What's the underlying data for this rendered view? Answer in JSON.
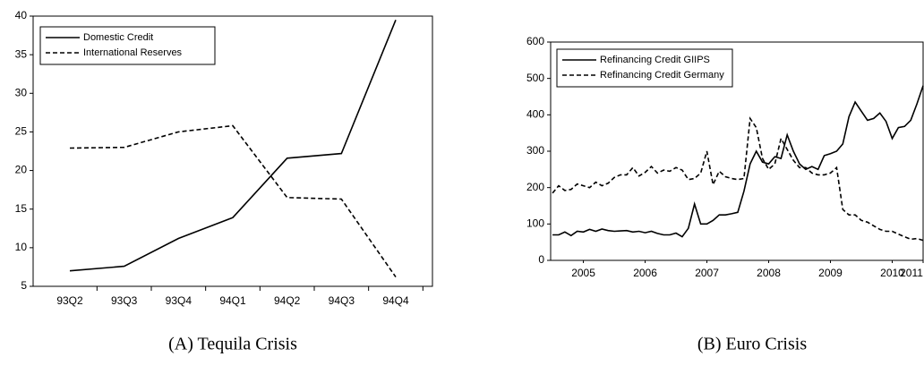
{
  "chart_data": [
    {
      "type": "line",
      "caption": "(A) Tequila Crisis",
      "categories": [
        "93Q2",
        "93Q3",
        "93Q4",
        "94Q1",
        "94Q2",
        "94Q3",
        "94Q4"
      ],
      "series": [
        {
          "name": "Domestic Credit",
          "color": "#000000",
          "line_style": "solid",
          "values": [
            7.0,
            7.6,
            11.2,
            13.9,
            21.6,
            22.2,
            39.5
          ]
        },
        {
          "name": "International Reserves",
          "color": "#000000",
          "line_style": "dashed",
          "values": [
            22.9,
            23.0,
            25.0,
            25.8,
            16.5,
            16.3,
            6.2
          ]
        }
      ],
      "ylim": [
        5,
        40
      ],
      "yticks": [
        5,
        10,
        15,
        20,
        25,
        30,
        35,
        40
      ],
      "legend": "upper-left",
      "grid": false
    },
    {
      "type": "line",
      "caption": "(B) Euro Crisis",
      "x": [
        2005.0,
        2005.1,
        2005.2,
        2005.3,
        2005.4,
        2005.5,
        2005.6,
        2005.7,
        2005.8,
        2005.9,
        2006.0,
        2006.1,
        2006.2,
        2006.3,
        2006.4,
        2006.5,
        2006.6,
        2006.7,
        2006.8,
        2006.9,
        2007.0,
        2007.1,
        2007.2,
        2007.3,
        2007.4,
        2007.5,
        2007.6,
        2007.7,
        2007.8,
        2007.9,
        2008.0,
        2008.1,
        2008.2,
        2008.3,
        2008.4,
        2008.5,
        2008.6,
        2008.7,
        2008.8,
        2008.9,
        2009.0,
        2009.1,
        2009.2,
        2009.3,
        2009.4,
        2009.5,
        2009.6,
        2009.7,
        2009.8,
        2009.9,
        2010.0,
        2010.1,
        2010.2,
        2010.3,
        2010.4,
        2010.5,
        2010.6,
        2010.7,
        2010.8,
        2010.9,
        2011.0
      ],
      "series": [
        {
          "name": "Refinancing Credit GIIPS",
          "color": "#000000",
          "line_style": "solid",
          "values": [
            70,
            70,
            78,
            68,
            80,
            78,
            85,
            80,
            86,
            82,
            80,
            81,
            82,
            78,
            80,
            76,
            80,
            74,
            70,
            70,
            75,
            65,
            88,
            155,
            100,
            100,
            110,
            125,
            125,
            128,
            132,
            190,
            265,
            300,
            270,
            265,
            285,
            280,
            345,
            300,
            265,
            250,
            258,
            250,
            288,
            293,
            300,
            320,
            395,
            435,
            410,
            385,
            390,
            405,
            382,
            335,
            365,
            368,
            385,
            430,
            480
          ]
        },
        {
          "name": "Refinancing Credit Germany",
          "color": "#000000",
          "line_style": "dashed",
          "values": [
            185,
            205,
            192,
            195,
            210,
            205,
            200,
            215,
            205,
            212,
            228,
            235,
            235,
            255,
            232,
            242,
            258,
            240,
            248,
            245,
            255,
            248,
            222,
            225,
            240,
            300,
            208,
            245,
            230,
            225,
            222,
            225,
            390,
            365,
            280,
            250,
            265,
            335,
            305,
            275,
            255,
            255,
            240,
            235,
            235,
            240,
            255,
            140,
            125,
            125,
            110,
            105,
            95,
            85,
            80,
            80,
            72,
            65,
            58,
            60,
            55
          ]
        }
      ],
      "xlim": [
        2004.97,
        2011.0
      ],
      "xticks": [
        {
          "value": 2005.5,
          "label": "2005"
        },
        {
          "value": 2006.5,
          "label": "2006"
        },
        {
          "value": 2007.5,
          "label": "2007"
        },
        {
          "value": 2008.5,
          "label": "2008"
        },
        {
          "value": 2009.5,
          "label": "2009"
        },
        {
          "value": 2010.5,
          "label": "2010"
        },
        {
          "value": 2011.5,
          "label": "2011"
        }
      ],
      "ylim": [
        0,
        600
      ],
      "yticks": [
        0,
        100,
        200,
        300,
        400,
        500,
        600
      ],
      "legend": "upper-left",
      "grid": false
    }
  ]
}
